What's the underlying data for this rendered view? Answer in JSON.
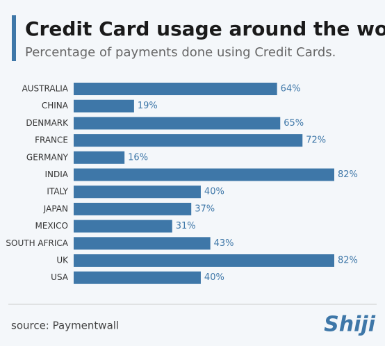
{
  "chart_data": {
    "type": "bar",
    "orientation": "horizontal",
    "title": "Credit Card usage around the world",
    "subtitle": "Percentage of payments done using Credit Cards.",
    "categories": [
      "AUSTRALIA",
      "CHINA",
      "DENMARK",
      "FRANCE",
      "GERMANY",
      "INDIA",
      "ITALY",
      "JAPAN",
      "MEXICO",
      "SOUTH AFRICA",
      "UK",
      "USA"
    ],
    "values": [
      64,
      19,
      65,
      72,
      16,
      82,
      40,
      37,
      31,
      43,
      82,
      40
    ],
    "value_labels": [
      "64%",
      "19%",
      "65%",
      "72%",
      "16%",
      "82%",
      "40%",
      "37%",
      "31%",
      "43%",
      "82%",
      "40%"
    ],
    "color": "#3e77a8",
    "source": "source: Paymentwall",
    "logo": "Shiji"
  }
}
